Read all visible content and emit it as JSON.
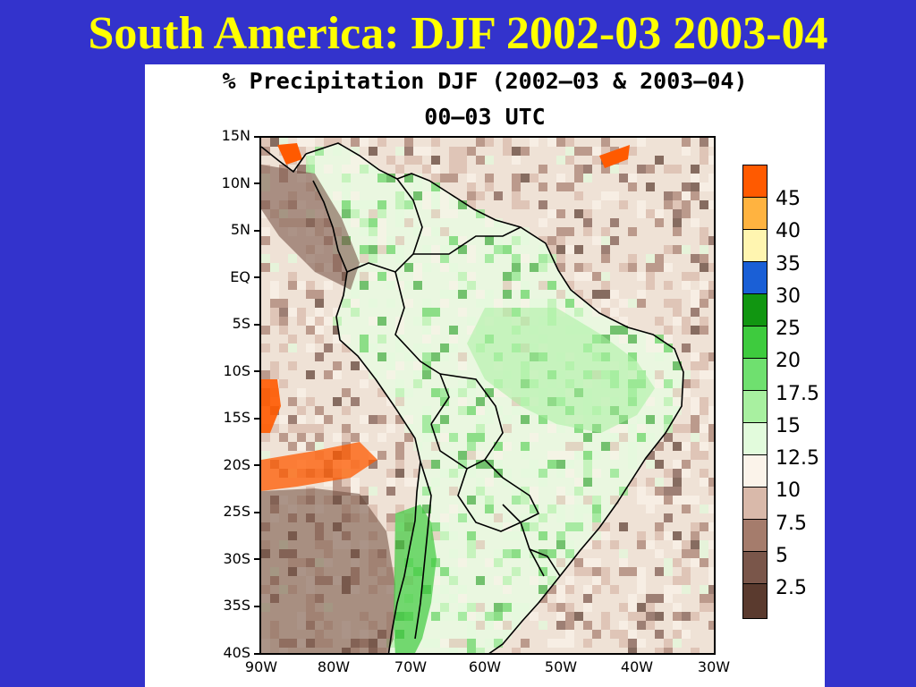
{
  "slide": {
    "title": "South America: DJF 2002-03 2003-04"
  },
  "map": {
    "title_line1": "% Precipitation DJF (2002–03 & 2003–04)",
    "title_line2": "00–03 UTC",
    "lat_labels": [
      "15N",
      "10N",
      "5N",
      "EQ",
      "5S",
      "10S",
      "15S",
      "20S",
      "25S",
      "30S",
      "35S",
      "40S"
    ],
    "lon_labels": [
      "90W",
      "80W",
      "70W",
      "60W",
      "50W",
      "40W",
      "30W"
    ],
    "lat_range": [
      -40,
      15
    ],
    "lon_range": [
      -90,
      -30
    ]
  },
  "legend": {
    "labels": [
      "45",
      "40",
      "35",
      "30",
      "25",
      "20",
      "17.5",
      "15",
      "12.5",
      "10",
      "7.5",
      "5",
      "2.5"
    ],
    "colors": [
      "#ff5a00",
      "#ffb340",
      "#fff5b0",
      "#1a5fd6",
      "#119611",
      "#3ecb3e",
      "#6fe06f",
      "#a8f0a0",
      "#e2fbdc",
      "#fbf3ea",
      "#d9b9aa",
      "#a57c6c",
      "#7a564a",
      "#5a3a2e"
    ]
  }
}
